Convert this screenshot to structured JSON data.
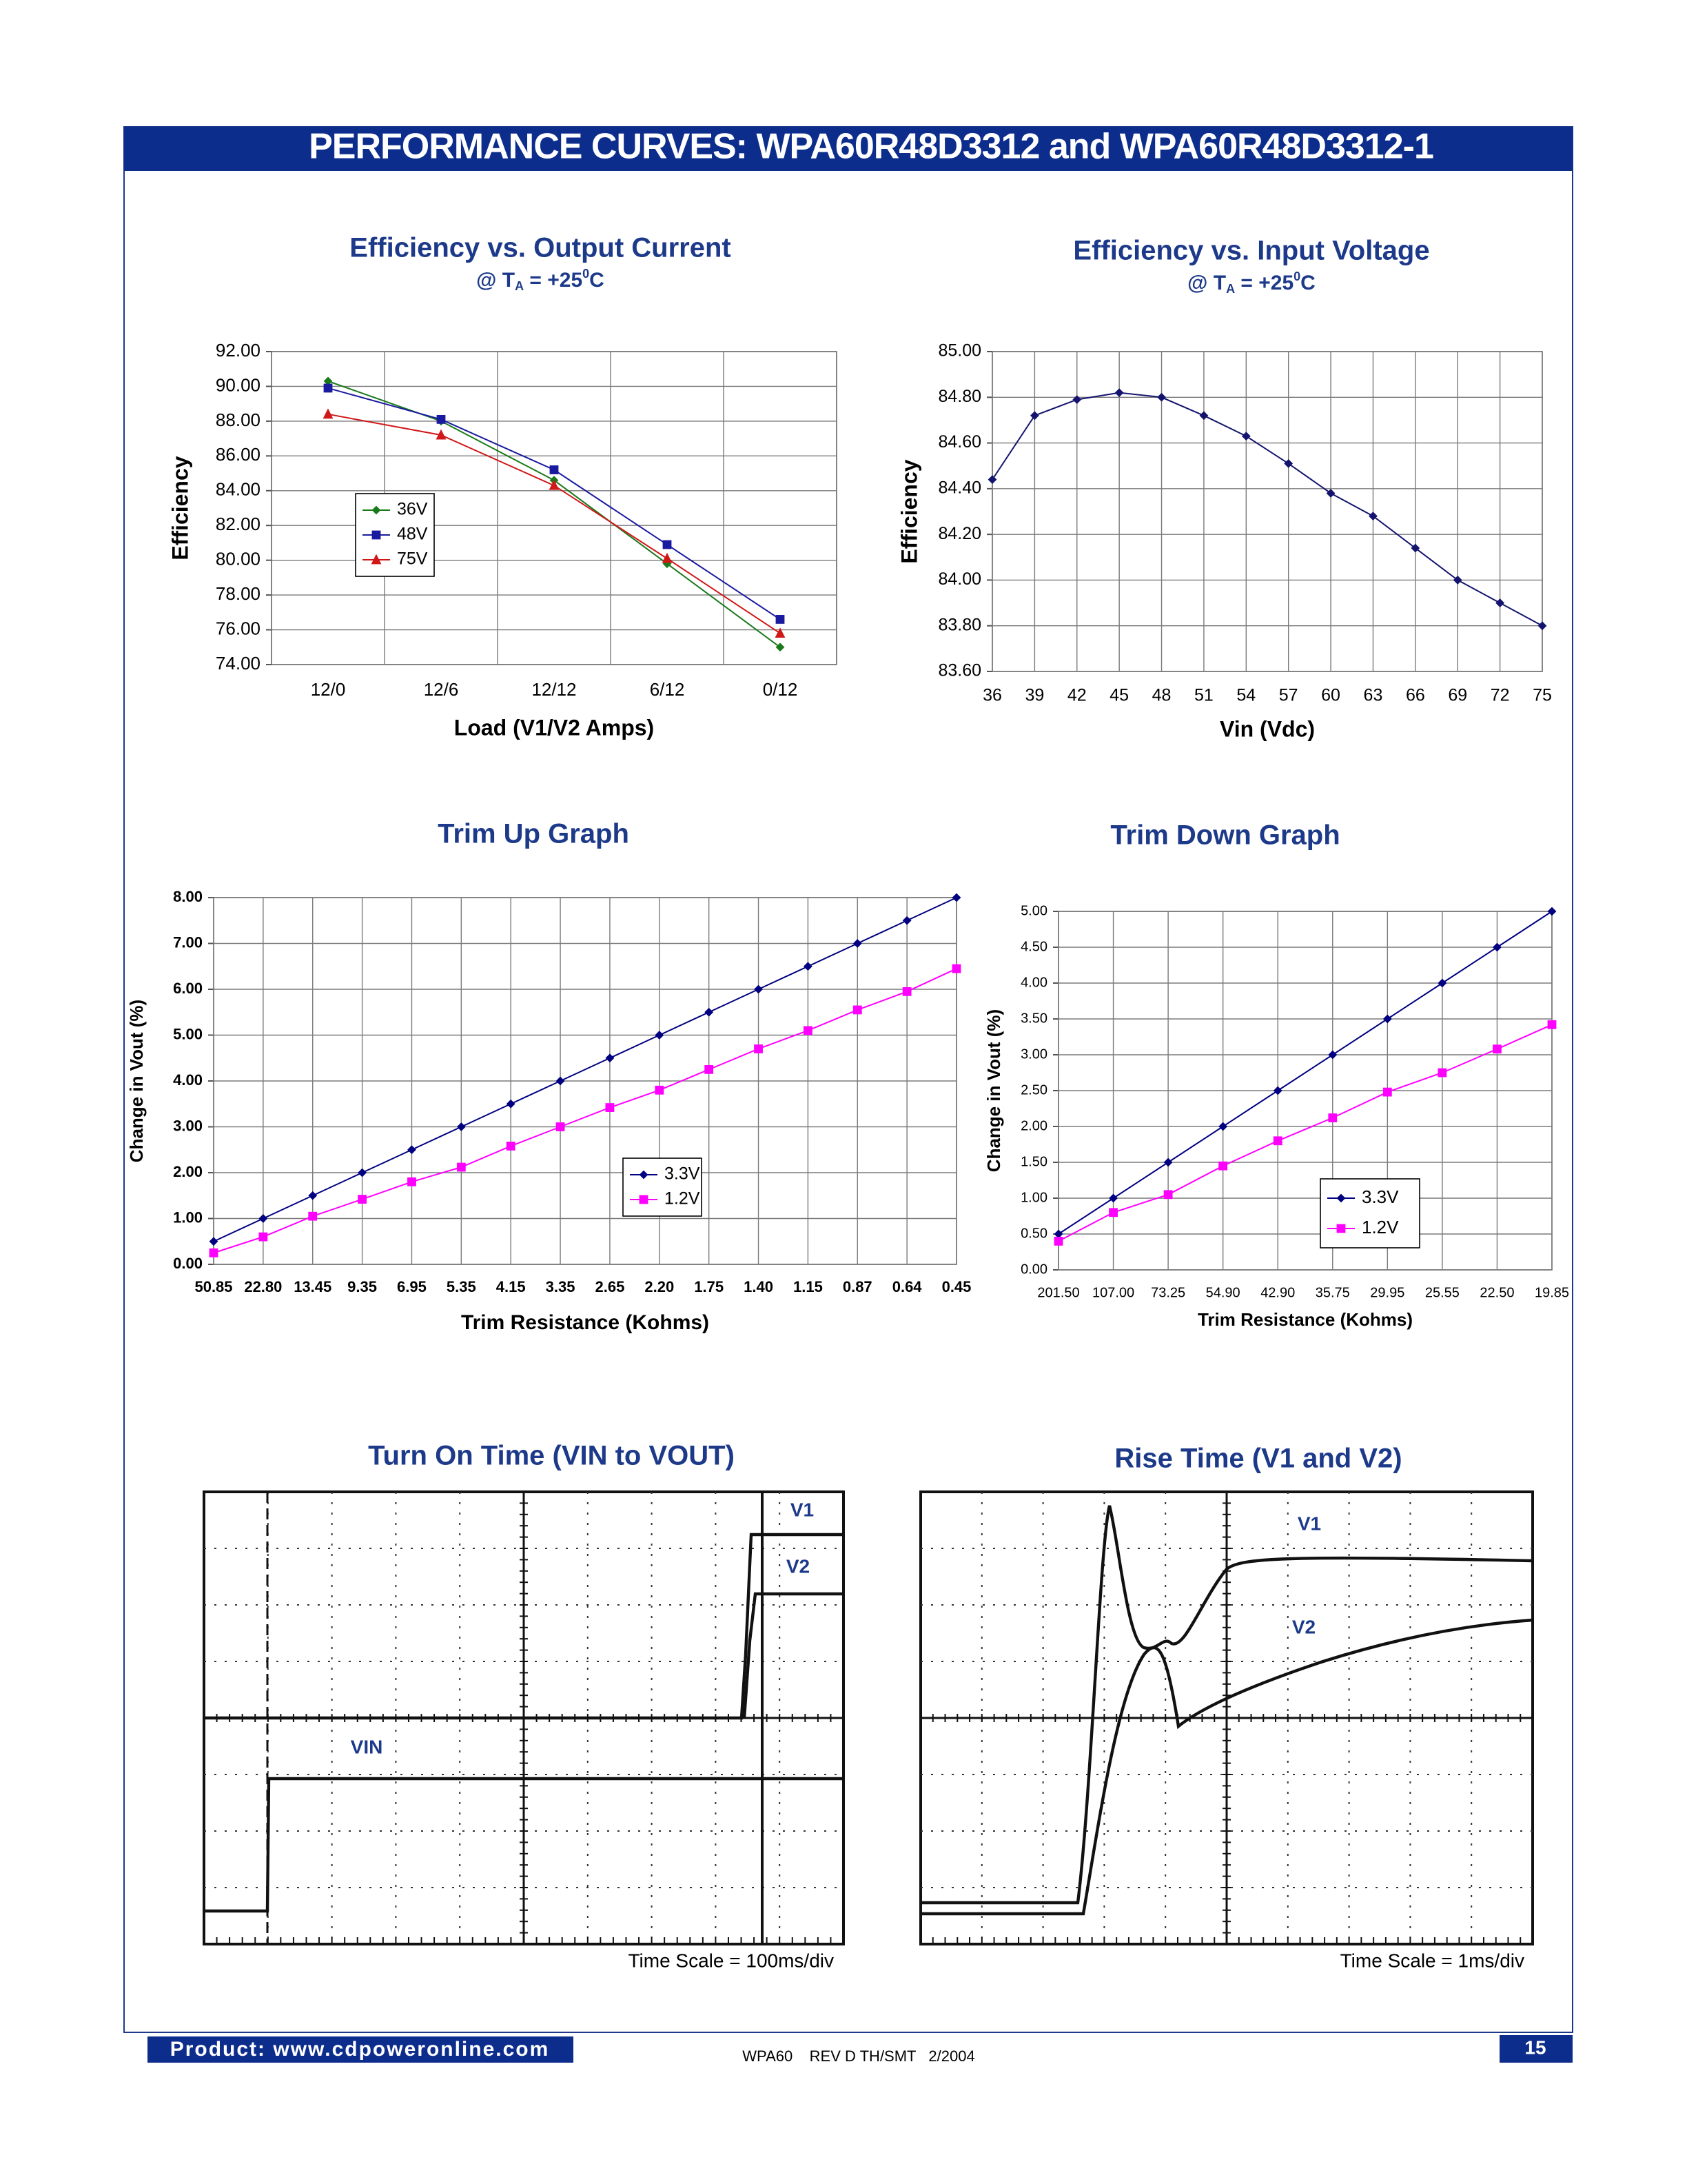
{
  "header": {
    "title": "PERFORMANCE CURVES:  WPA60R48D3312 and WPA60R48D3312-1"
  },
  "chart_data": [
    {
      "type": "line",
      "title": "Efficiency vs. Output Current",
      "subtitle": [
        "@ T",
        "A",
        " = +25",
        "0",
        "C"
      ],
      "xlabel": "Load (V1/V2 Amps)",
      "ylabel": "Efficiency",
      "categories": [
        "12/0",
        "12/6",
        "12/12",
        "6/12",
        "0/12"
      ],
      "ylim": [
        74,
        92
      ],
      "yticks": [
        {
          "value": 74,
          "label": "74.00"
        },
        {
          "value": 76,
          "label": "76.00"
        },
        {
          "value": 78,
          "label": "78.00"
        },
        {
          "value": 80,
          "label": "80.00"
        },
        {
          "value": 82,
          "label": "82.00"
        },
        {
          "value": 84,
          "label": "84.00"
        },
        {
          "value": 86,
          "label": "86.00"
        },
        {
          "value": 88,
          "label": "88.00"
        },
        {
          "value": 90,
          "label": "90.00"
        },
        {
          "value": 92,
          "label": "92.00"
        }
      ],
      "grid": true,
      "series": [
        {
          "name": "36V",
          "color": "#1a7a1a",
          "marker": "diamond",
          "values": [
            90.3,
            88.0,
            84.6,
            79.8,
            75.0
          ]
        },
        {
          "name": "48V",
          "color": "#1a1aa0",
          "marker": "square",
          "values": [
            89.9,
            88.1,
            85.2,
            80.9,
            76.6
          ]
        },
        {
          "name": "75V",
          "color": "#d01818",
          "marker": "triangle",
          "values": [
            88.4,
            87.2,
            84.3,
            80.1,
            75.8
          ]
        }
      ]
    },
    {
      "type": "line",
      "title": "Efficiency vs. Input Voltage",
      "subtitle": [
        "@ T",
        "A",
        " = +25",
        "0",
        "C"
      ],
      "xlabel": "Vin (Vdc)",
      "ylabel": "Efficiency",
      "x": [
        36,
        39,
        42,
        45,
        48,
        51,
        54,
        57,
        60,
        63,
        66,
        69,
        72,
        75
      ],
      "xlim": [
        36,
        75
      ],
      "xticks": [
        36,
        39,
        42,
        45,
        48,
        51,
        54,
        57,
        60,
        63,
        66,
        69,
        72,
        75
      ],
      "ylim": [
        83.6,
        85.0
      ],
      "yticks": [
        {
          "value": 83.6,
          "label": "83.60"
        },
        {
          "value": 83.8,
          "label": "83.80"
        },
        {
          "value": 84.0,
          "label": "84.00"
        },
        {
          "value": 84.2,
          "label": "84.20"
        },
        {
          "value": 84.4,
          "label": "84.40"
        },
        {
          "value": 84.6,
          "label": "84.60"
        },
        {
          "value": 84.8,
          "label": "84.80"
        },
        {
          "value": 85.0,
          "label": "85.00"
        }
      ],
      "grid": true,
      "series": [
        {
          "color": "#14146e",
          "marker": "diamond",
          "values": [
            84.44,
            84.72,
            84.79,
            84.82,
            84.8,
            84.72,
            84.63,
            84.51,
            84.38,
            84.28,
            84.14,
            84.0,
            83.9,
            83.8
          ]
        }
      ]
    },
    {
      "type": "line",
      "title": "Trim Up Graph",
      "xlabel": "Trim Resistance (Kohms)",
      "ylabel": "Change in Vout (%)",
      "categories": [
        "50.85",
        "22.80",
        "13.45",
        "9.35",
        "6.95",
        "5.35",
        "4.15",
        "3.35",
        "2.65",
        "2.20",
        "1.75",
        "1.40",
        "1.15",
        "0.87",
        "0.64",
        "0.45"
      ],
      "ylim": [
        0,
        8
      ],
      "yticks": [
        {
          "value": 0,
          "label": "0.00"
        },
        {
          "value": 1,
          "label": "1.00"
        },
        {
          "value": 2,
          "label": "2.00"
        },
        {
          "value": 3,
          "label": "3.00"
        },
        {
          "value": 4,
          "label": "4.00"
        },
        {
          "value": 5,
          "label": "5.00"
        },
        {
          "value": 6,
          "label": "6.00"
        },
        {
          "value": 7,
          "label": "7.00"
        },
        {
          "value": 8,
          "label": "8.00"
        }
      ],
      "grid": true,
      "series": [
        {
          "name": "3.3V",
          "color": "#000080",
          "marker": "diamond",
          "values": [
            0.5,
            1.0,
            1.5,
            2.0,
            2.5,
            3.0,
            3.5,
            4.0,
            4.5,
            5.0,
            5.5,
            6.0,
            6.5,
            7.0,
            7.5,
            8.0
          ]
        },
        {
          "name": "1.2V",
          "color": "#ff00ff",
          "marker": "square",
          "values": [
            0.25,
            0.6,
            1.05,
            1.42,
            1.8,
            2.12,
            2.58,
            3.0,
            3.42,
            3.8,
            4.25,
            4.7,
            5.1,
            5.55,
            5.95,
            6.45
          ]
        }
      ]
    },
    {
      "type": "line",
      "title": "Trim Down Graph",
      "xlabel": "Trim Resistance (Kohms)",
      "ylabel": "Change in Vout (%)",
      "categories": [
        "201.50",
        "107.00",
        "73.25",
        "54.90",
        "42.90",
        "35.75",
        "29.95",
        "25.55",
        "22.50",
        "19.85"
      ],
      "ylim": [
        0,
        5
      ],
      "yticks": [
        {
          "value": 0,
          "label": "0.00"
        },
        {
          "value": 0.5,
          "label": "0.50"
        },
        {
          "value": 1,
          "label": "1.00"
        },
        {
          "value": 1.5,
          "label": "1.50"
        },
        {
          "value": 2,
          "label": "2.00"
        },
        {
          "value": 2.5,
          "label": "2.50"
        },
        {
          "value": 3,
          "label": "3.00"
        },
        {
          "value": 3.5,
          "label": "3.50"
        },
        {
          "value": 4,
          "label": "4.00"
        },
        {
          "value": 4.5,
          "label": "4.50"
        },
        {
          "value": 5,
          "label": "5.00"
        }
      ],
      "grid": true,
      "series": [
        {
          "name": "3.3V",
          "color": "#000080",
          "marker": "diamond",
          "values": [
            0.5,
            1.0,
            1.5,
            2.0,
            2.5,
            3.0,
            3.5,
            4.0,
            4.5,
            5.0
          ]
        },
        {
          "name": "1.2V",
          "color": "#ff00ff",
          "marker": "square",
          "values": [
            0.4,
            0.8,
            1.05,
            1.45,
            1.8,
            2.12,
            2.48,
            2.75,
            3.08,
            3.42
          ]
        }
      ]
    }
  ],
  "scope_plots": [
    {
      "title": "Turn On Time (VIN to VOUT)",
      "labels": [
        "V1",
        "V2",
        "VIN"
      ],
      "time_scale": "Time Scale = 100ms/div"
    },
    {
      "title": "Rise Time (V1 and V2)",
      "labels": [
        "V1",
        "V2"
      ],
      "time_scale": "Time Scale = 1ms/div"
    }
  ],
  "footer": {
    "product": "Product: www.cdpoweronline.com",
    "revision": "WPA60    REV D TH/SMT   2/2004",
    "page": "15"
  }
}
